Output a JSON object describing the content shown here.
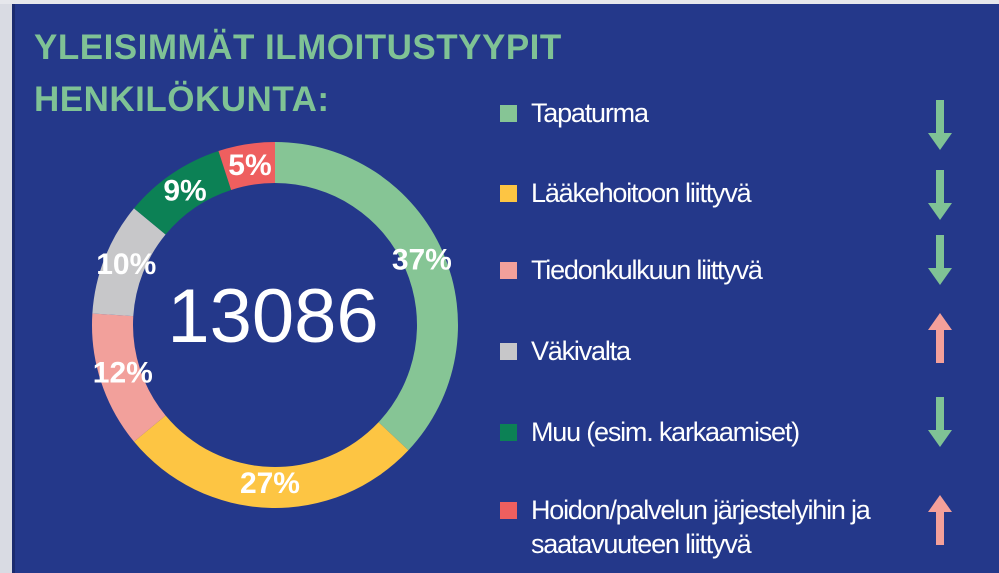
{
  "chart_data": {
    "type": "pie",
    "donut": true,
    "title_lines": [
      "YLEISIMMÄT ILMOITUSTYYPIT",
      "HENKILÖKUNTA:"
    ],
    "center_value": 13086,
    "categories": [
      "Tapaturma",
      "Lääkehoitoon liittyvä",
      "Tiedonkulkuun liittyvä",
      "Väkivalta",
      "Muu (esim. karkaamiset)",
      "Hoidon/palvelun järjestelyihin ja saatavuuteen liittyvä"
    ],
    "values": [
      37,
      27,
      12,
      10,
      9,
      5
    ],
    "value_labels": [
      "37%",
      "27%",
      "12%",
      "10%",
      "9%",
      "5%"
    ],
    "colors": [
      "#86c595",
      "#fdc543",
      "#f2a09b",
      "#c7c7c9",
      "#0c8155",
      "#ee5f5f"
    ],
    "trends": [
      "down",
      "down",
      "down",
      "up",
      "down",
      "up"
    ]
  }
}
